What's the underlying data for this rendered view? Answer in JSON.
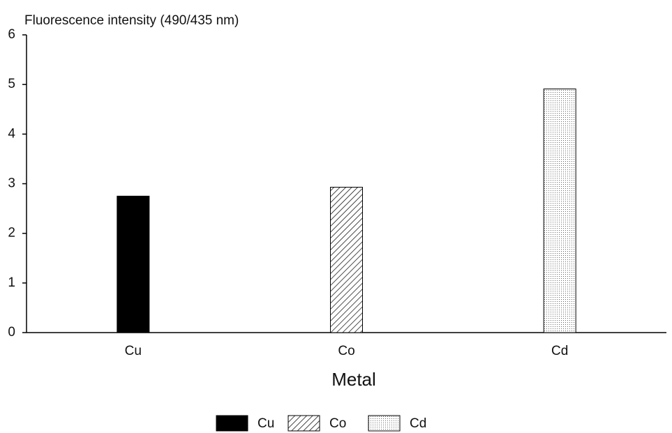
{
  "chart_data": {
    "type": "bar",
    "title": "Fluorescence intensity (490/435 nm)",
    "xlabel": "Metal",
    "categories": [
      "Cu",
      "Co",
      "Cd"
    ],
    "series": [
      {
        "name": "Cu",
        "color": "#000000",
        "pattern": "solid",
        "values": [
          2.75,
          null,
          null
        ]
      },
      {
        "name": "Co",
        "color": "#000000",
        "pattern": "hatch",
        "values": [
          null,
          2.93,
          null
        ]
      },
      {
        "name": "Cd",
        "color": "#000000",
        "pattern": "dots",
        "values": [
          null,
          null,
          4.91
        ]
      }
    ],
    "ylim": [
      0,
      6
    ],
    "yticks": [
      0,
      1,
      2,
      3,
      4,
      5,
      6
    ],
    "legend": "bottom"
  }
}
